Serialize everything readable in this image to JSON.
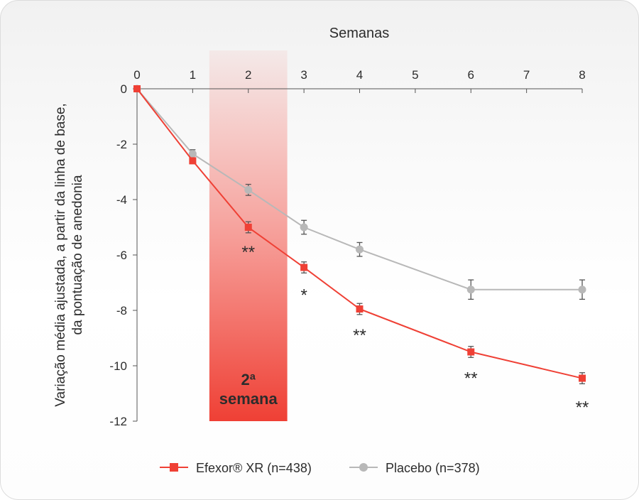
{
  "chart_data": {
    "type": "line",
    "xlabel": "Semanas",
    "ylabel_lines": [
      "Variação média ajustada, a partir da linha de base,",
      "da pontuação de anedonia"
    ],
    "x_ticks": [
      0,
      1,
      2,
      3,
      4,
      5,
      6,
      7,
      8
    ],
    "y_ticks": [
      0,
      -2,
      -4,
      -6,
      -8,
      -10,
      -12
    ],
    "xlim": [
      0,
      8
    ],
    "ylim": [
      -12,
      0
    ],
    "highlight": {
      "x_range": [
        1.3,
        2.7
      ],
      "label_lines": [
        "2ª",
        "semana"
      ],
      "color": "#ef4035"
    },
    "series": [
      {
        "name": "Efexor® XR (n=438)",
        "color": "#ef4035",
        "marker": "square",
        "x": [
          0,
          1,
          2,
          3,
          4,
          6,
          8
        ],
        "y": [
          0,
          -2.6,
          -5.0,
          -6.45,
          -7.95,
          -9.5,
          -10.45
        ],
        "err": [
          0,
          0.1,
          0.2,
          0.2,
          0.2,
          0.2,
          0.2
        ]
      },
      {
        "name": "Placebo (n=378)",
        "color": "#b8b8b8",
        "marker": "circle",
        "x": [
          0,
          1,
          2,
          3,
          4,
          6,
          8
        ],
        "y": [
          0,
          -2.35,
          -3.65,
          -5.0,
          -5.8,
          -7.25,
          -7.25
        ],
        "err": [
          0,
          0.15,
          0.2,
          0.25,
          0.25,
          0.35,
          0.35
        ]
      }
    ],
    "significance": [
      {
        "x": 2,
        "y": -6.1,
        "text": "**"
      },
      {
        "x": 3,
        "y": -7.65,
        "text": "*"
      },
      {
        "x": 4,
        "y": -9.1,
        "text": "**"
      },
      {
        "x": 6,
        "y": -10.65,
        "text": "**"
      },
      {
        "x": 8,
        "y": -11.7,
        "text": "**"
      }
    ],
    "legend": {
      "placement": "bottom-center"
    }
  }
}
